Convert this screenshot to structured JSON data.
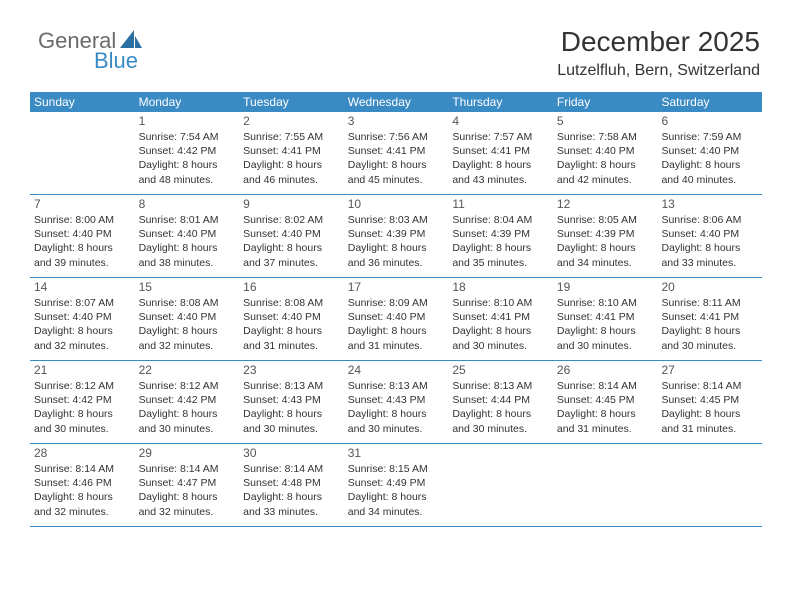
{
  "logo": {
    "text_general": "General",
    "text_blue": "Blue"
  },
  "title": "December 2025",
  "location": "Lutzelfluh, Bern, Switzerland",
  "colors": {
    "brand_blue": "#3a8ac4",
    "text_gray": "#333333",
    "logo_gray": "#6b6b6b",
    "background": "#ffffff"
  },
  "day_headers": [
    "Sunday",
    "Monday",
    "Tuesday",
    "Wednesday",
    "Thursday",
    "Friday",
    "Saturday"
  ],
  "weeks": [
    [
      {
        "num": "",
        "sunrise": "",
        "sunset": "",
        "daylight": ""
      },
      {
        "num": "1",
        "sunrise": "Sunrise: 7:54 AM",
        "sunset": "Sunset: 4:42 PM",
        "daylight": "Daylight: 8 hours and 48 minutes."
      },
      {
        "num": "2",
        "sunrise": "Sunrise: 7:55 AM",
        "sunset": "Sunset: 4:41 PM",
        "daylight": "Daylight: 8 hours and 46 minutes."
      },
      {
        "num": "3",
        "sunrise": "Sunrise: 7:56 AM",
        "sunset": "Sunset: 4:41 PM",
        "daylight": "Daylight: 8 hours and 45 minutes."
      },
      {
        "num": "4",
        "sunrise": "Sunrise: 7:57 AM",
        "sunset": "Sunset: 4:41 PM",
        "daylight": "Daylight: 8 hours and 43 minutes."
      },
      {
        "num": "5",
        "sunrise": "Sunrise: 7:58 AM",
        "sunset": "Sunset: 4:40 PM",
        "daylight": "Daylight: 8 hours and 42 minutes."
      },
      {
        "num": "6",
        "sunrise": "Sunrise: 7:59 AM",
        "sunset": "Sunset: 4:40 PM",
        "daylight": "Daylight: 8 hours and 40 minutes."
      }
    ],
    [
      {
        "num": "7",
        "sunrise": "Sunrise: 8:00 AM",
        "sunset": "Sunset: 4:40 PM",
        "daylight": "Daylight: 8 hours and 39 minutes."
      },
      {
        "num": "8",
        "sunrise": "Sunrise: 8:01 AM",
        "sunset": "Sunset: 4:40 PM",
        "daylight": "Daylight: 8 hours and 38 minutes."
      },
      {
        "num": "9",
        "sunrise": "Sunrise: 8:02 AM",
        "sunset": "Sunset: 4:40 PM",
        "daylight": "Daylight: 8 hours and 37 minutes."
      },
      {
        "num": "10",
        "sunrise": "Sunrise: 8:03 AM",
        "sunset": "Sunset: 4:39 PM",
        "daylight": "Daylight: 8 hours and 36 minutes."
      },
      {
        "num": "11",
        "sunrise": "Sunrise: 8:04 AM",
        "sunset": "Sunset: 4:39 PM",
        "daylight": "Daylight: 8 hours and 35 minutes."
      },
      {
        "num": "12",
        "sunrise": "Sunrise: 8:05 AM",
        "sunset": "Sunset: 4:39 PM",
        "daylight": "Daylight: 8 hours and 34 minutes."
      },
      {
        "num": "13",
        "sunrise": "Sunrise: 8:06 AM",
        "sunset": "Sunset: 4:40 PM",
        "daylight": "Daylight: 8 hours and 33 minutes."
      }
    ],
    [
      {
        "num": "14",
        "sunrise": "Sunrise: 8:07 AM",
        "sunset": "Sunset: 4:40 PM",
        "daylight": "Daylight: 8 hours and 32 minutes."
      },
      {
        "num": "15",
        "sunrise": "Sunrise: 8:08 AM",
        "sunset": "Sunset: 4:40 PM",
        "daylight": "Daylight: 8 hours and 32 minutes."
      },
      {
        "num": "16",
        "sunrise": "Sunrise: 8:08 AM",
        "sunset": "Sunset: 4:40 PM",
        "daylight": "Daylight: 8 hours and 31 minutes."
      },
      {
        "num": "17",
        "sunrise": "Sunrise: 8:09 AM",
        "sunset": "Sunset: 4:40 PM",
        "daylight": "Daylight: 8 hours and 31 minutes."
      },
      {
        "num": "18",
        "sunrise": "Sunrise: 8:10 AM",
        "sunset": "Sunset: 4:41 PM",
        "daylight": "Daylight: 8 hours and 30 minutes."
      },
      {
        "num": "19",
        "sunrise": "Sunrise: 8:10 AM",
        "sunset": "Sunset: 4:41 PM",
        "daylight": "Daylight: 8 hours and 30 minutes."
      },
      {
        "num": "20",
        "sunrise": "Sunrise: 8:11 AM",
        "sunset": "Sunset: 4:41 PM",
        "daylight": "Daylight: 8 hours and 30 minutes."
      }
    ],
    [
      {
        "num": "21",
        "sunrise": "Sunrise: 8:12 AM",
        "sunset": "Sunset: 4:42 PM",
        "daylight": "Daylight: 8 hours and 30 minutes."
      },
      {
        "num": "22",
        "sunrise": "Sunrise: 8:12 AM",
        "sunset": "Sunset: 4:42 PM",
        "daylight": "Daylight: 8 hours and 30 minutes."
      },
      {
        "num": "23",
        "sunrise": "Sunrise: 8:13 AM",
        "sunset": "Sunset: 4:43 PM",
        "daylight": "Daylight: 8 hours and 30 minutes."
      },
      {
        "num": "24",
        "sunrise": "Sunrise: 8:13 AM",
        "sunset": "Sunset: 4:43 PM",
        "daylight": "Daylight: 8 hours and 30 minutes."
      },
      {
        "num": "25",
        "sunrise": "Sunrise: 8:13 AM",
        "sunset": "Sunset: 4:44 PM",
        "daylight": "Daylight: 8 hours and 30 minutes."
      },
      {
        "num": "26",
        "sunrise": "Sunrise: 8:14 AM",
        "sunset": "Sunset: 4:45 PM",
        "daylight": "Daylight: 8 hours and 31 minutes."
      },
      {
        "num": "27",
        "sunrise": "Sunrise: 8:14 AM",
        "sunset": "Sunset: 4:45 PM",
        "daylight": "Daylight: 8 hours and 31 minutes."
      }
    ],
    [
      {
        "num": "28",
        "sunrise": "Sunrise: 8:14 AM",
        "sunset": "Sunset: 4:46 PM",
        "daylight": "Daylight: 8 hours and 32 minutes."
      },
      {
        "num": "29",
        "sunrise": "Sunrise: 8:14 AM",
        "sunset": "Sunset: 4:47 PM",
        "daylight": "Daylight: 8 hours and 32 minutes."
      },
      {
        "num": "30",
        "sunrise": "Sunrise: 8:14 AM",
        "sunset": "Sunset: 4:48 PM",
        "daylight": "Daylight: 8 hours and 33 minutes."
      },
      {
        "num": "31",
        "sunrise": "Sunrise: 8:15 AM",
        "sunset": "Sunset: 4:49 PM",
        "daylight": "Daylight: 8 hours and 34 minutes."
      },
      {
        "num": "",
        "sunrise": "",
        "sunset": "",
        "daylight": ""
      },
      {
        "num": "",
        "sunrise": "",
        "sunset": "",
        "daylight": ""
      },
      {
        "num": "",
        "sunrise": "",
        "sunset": "",
        "daylight": ""
      }
    ]
  ]
}
